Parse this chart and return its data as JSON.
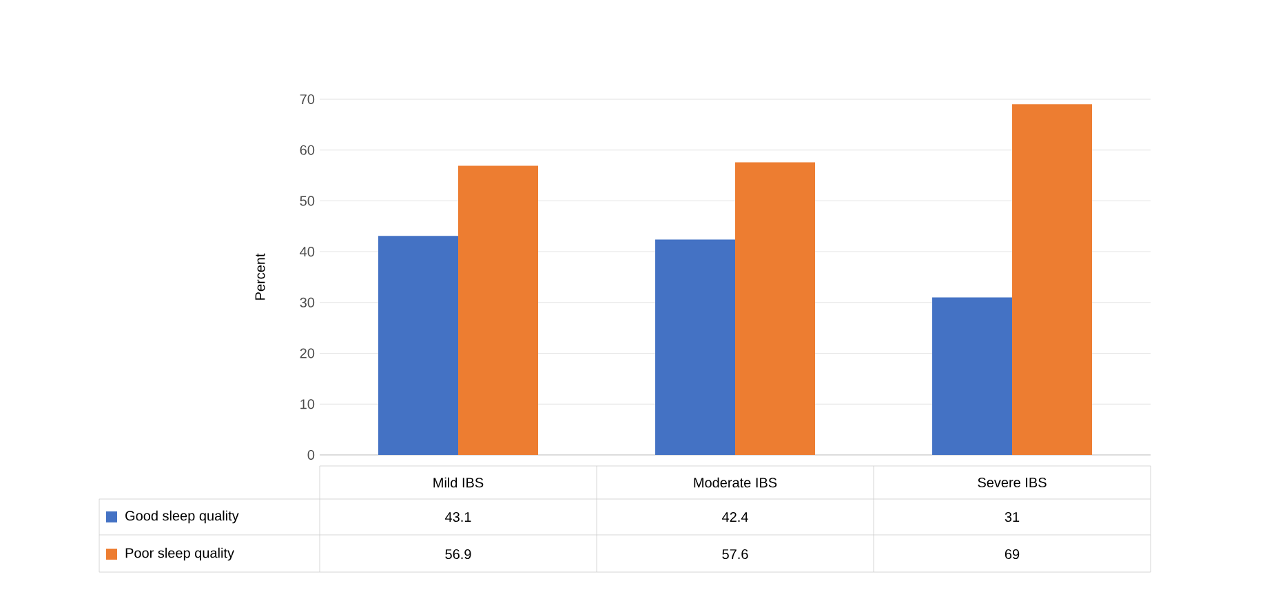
{
  "chart_data": {
    "type": "bar",
    "ylabel": "Percent",
    "categories": [
      "Mild IBS",
      "Moderate IBS",
      "Severe IBS"
    ],
    "series": [
      {
        "name": "Good sleep quality",
        "color": "#4472c4",
        "values": [
          43.1,
          42.4,
          31
        ]
      },
      {
        "name": "Poor sleep quality",
        "color": "#ed7d31",
        "values": [
          56.9,
          57.6,
          69
        ]
      }
    ],
    "ylim": [
      0,
      70
    ],
    "yticks": [
      0,
      10,
      20,
      30,
      40,
      50,
      60,
      70
    ],
    "grid": "y",
    "legend": "bottom",
    "data_labels": true
  }
}
